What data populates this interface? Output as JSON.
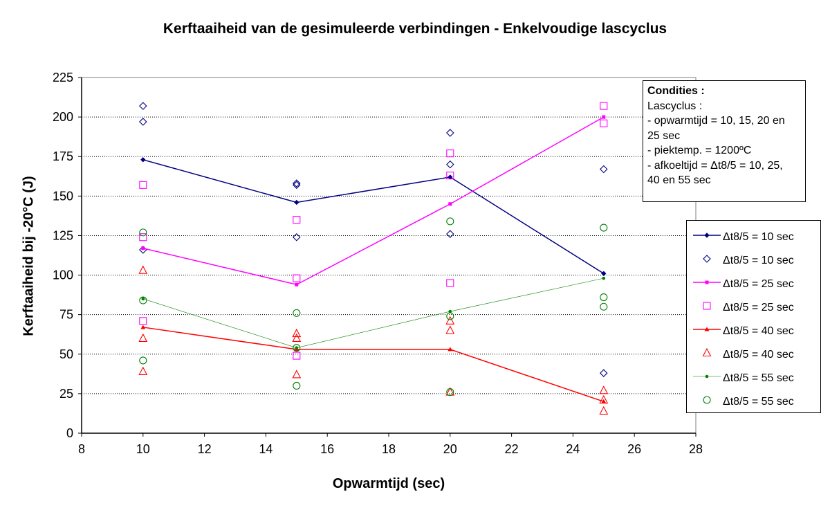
{
  "chart_data": {
    "type": "scatter",
    "title": "Kerftaaiheid van de gesimuleerde verbindingen - Enkelvoudige lascyclus",
    "xlabel": "Opwarmtijd (sec)",
    "ylabel": "Kerftaaiheid bij -20°C (J)",
    "xlim": [
      8,
      28
    ],
    "ylim": [
      0,
      225
    ],
    "xticks": [
      8,
      10,
      12,
      14,
      16,
      18,
      20,
      22,
      24,
      26,
      28
    ],
    "yticks": [
      0,
      25,
      50,
      75,
      100,
      125,
      150,
      175,
      200,
      225
    ],
    "grid": "horizontal dotted",
    "legend_position": "right",
    "series": [
      {
        "name": "Δt8/5 = 10 sec",
        "style": "line",
        "marker": "diamond-filled",
        "color": "#000080",
        "points": [
          [
            10,
            173
          ],
          [
            15,
            146
          ],
          [
            20,
            162
          ],
          [
            25,
            101
          ]
        ]
      },
      {
        "name": "Δt8/5 = 10 sec",
        "style": "markers",
        "marker": "diamond-open",
        "color": "#000080",
        "points": [
          [
            10,
            207
          ],
          [
            10,
            197
          ],
          [
            10,
            116
          ],
          [
            15,
            158
          ],
          [
            15,
            157
          ],
          [
            15,
            124
          ],
          [
            20,
            190
          ],
          [
            20,
            170
          ],
          [
            20,
            126
          ],
          [
            25,
            167
          ],
          [
            25,
            38
          ]
        ]
      },
      {
        "name": "Δt8/5 = 25 sec",
        "style": "line",
        "marker": "square-filled",
        "color": "#FF00FF",
        "points": [
          [
            10,
            117
          ],
          [
            15,
            94
          ],
          [
            20,
            145
          ],
          [
            25,
            200
          ]
        ]
      },
      {
        "name": "Δt8/5 = 25 sec",
        "style": "markers",
        "marker": "square-open",
        "color": "#FF00FF",
        "points": [
          [
            10,
            157
          ],
          [
            10,
            124
          ],
          [
            10,
            71
          ],
          [
            15,
            135
          ],
          [
            15,
            98
          ],
          [
            15,
            49
          ],
          [
            20,
            177
          ],
          [
            20,
            163
          ],
          [
            20,
            95
          ],
          [
            25,
            207
          ],
          [
            25,
            196
          ]
        ]
      },
      {
        "name": "Δt8/5 = 40 sec",
        "style": "line",
        "marker": "triangle-filled",
        "color": "#FF0000",
        "points": [
          [
            10,
            67
          ],
          [
            15,
            53
          ],
          [
            20,
            53
          ],
          [
            25,
            20
          ]
        ]
      },
      {
        "name": "Δt8/5 = 40 sec",
        "style": "markers",
        "marker": "triangle-open",
        "color": "#FF0000",
        "points": [
          [
            10,
            103
          ],
          [
            10,
            60
          ],
          [
            10,
            39
          ],
          [
            15,
            63
          ],
          [
            15,
            60
          ],
          [
            15,
            37
          ],
          [
            20,
            71
          ],
          [
            20,
            65
          ],
          [
            20,
            26
          ],
          [
            25,
            27
          ],
          [
            25,
            21
          ],
          [
            25,
            14
          ]
        ]
      },
      {
        "name": "Δt8/5 = 55 sec",
        "style": "line",
        "marker": "dot-filled",
        "color": "#008000",
        "points": [
          [
            10,
            85
          ],
          [
            15,
            54
          ],
          [
            20,
            77
          ],
          [
            25,
            98
          ]
        ]
      },
      {
        "name": "Δt8/5 = 55 sec",
        "style": "markers",
        "marker": "circle-open",
        "color": "#008000",
        "points": [
          [
            10,
            127
          ],
          [
            10,
            84
          ],
          [
            10,
            46
          ],
          [
            15,
            76
          ],
          [
            15,
            54
          ],
          [
            15,
            30
          ],
          [
            20,
            134
          ],
          [
            20,
            74
          ],
          [
            20,
            26
          ],
          [
            25,
            130
          ],
          [
            25,
            86
          ],
          [
            25,
            80
          ]
        ]
      }
    ]
  },
  "conditions": {
    "title": "Condities :",
    "lines": [
      "Lascyclus :",
      "- opwarmtijd = 10, 15, 20 en",
      "25 sec",
      "- piektemp. = 1200ºC",
      "- afkoeltijd = Δt8/5 = 10, 25,",
      "40 en 55 sec"
    ]
  }
}
